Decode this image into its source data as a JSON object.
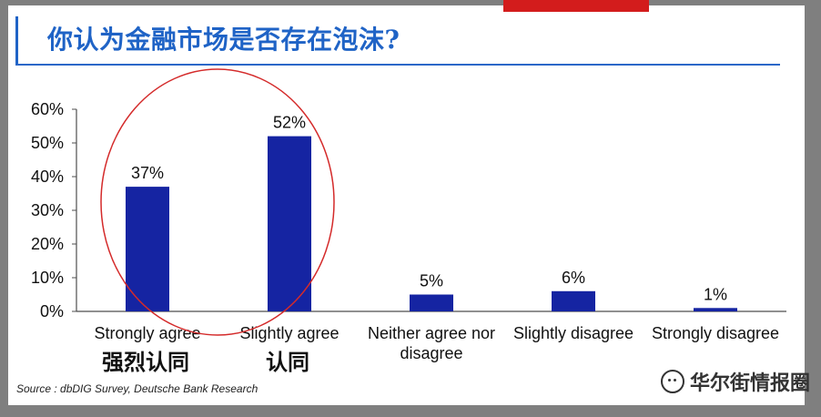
{
  "title": "你认为金融市场是否存在泡沫?",
  "chart_data": {
    "type": "bar",
    "categories": [
      "Strongly agree",
      "Slightly agree",
      "Neither agree nor disagree",
      "Slightly disagree",
      "Strongly disagree"
    ],
    "values": [
      37,
      52,
      5,
      6,
      1
    ],
    "value_labels": [
      "37%",
      "52%",
      "5%",
      "6%",
      "1%"
    ],
    "y_ticks": [
      "0%",
      "10%",
      "20%",
      "30%",
      "40%",
      "50%",
      "60%"
    ],
    "ylim": [
      0,
      60
    ],
    "bar_color": "#1524a2",
    "annotation_circle_color": "#d42a2a",
    "xlabel": "",
    "ylabel": ""
  },
  "chinese_labels": {
    "strong": "强烈认同",
    "slight": "认同"
  },
  "source": "Source : dbDIG Survey, Deutsche Bank Research",
  "watermark": "华尔街情报圈",
  "watermark_icon": "wechat-icon",
  "colors": {
    "title": "#1f63c6",
    "accent": "#d31c1c"
  }
}
